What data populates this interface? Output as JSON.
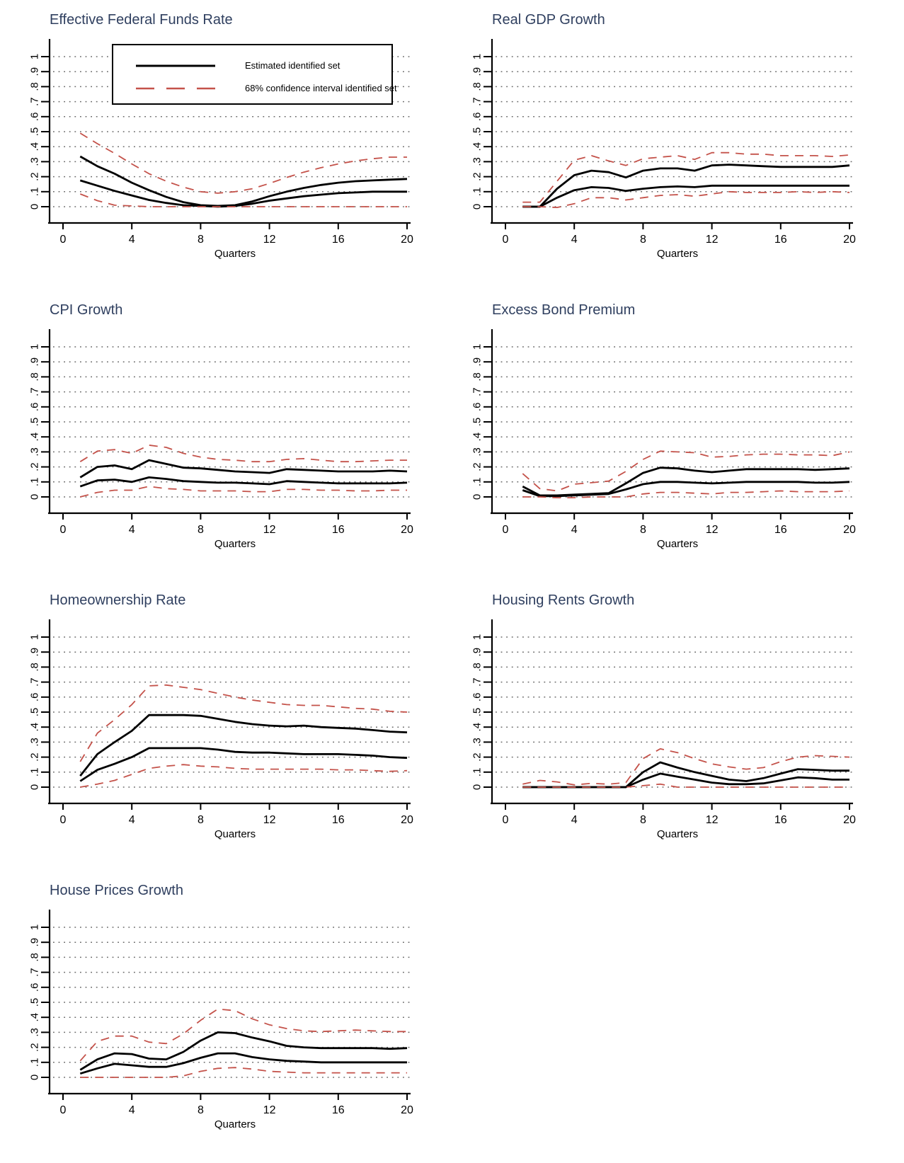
{
  "page": {
    "background": "#ffffff"
  },
  "styles": {
    "title_color": "#2f3f5f",
    "solid_line_color": "#000000",
    "ci_line_color": "#c4524a",
    "grid_color": "#686868",
    "axis_color": "#000000"
  },
  "legend": {
    "items": [
      {
        "label": "Estimated identified set",
        "style": "solid"
      },
      {
        "label": "68% confidence interval identified set",
        "style": "dashed"
      }
    ]
  },
  "axes": {
    "xlabel": "Quarters",
    "x_ticks": [
      0,
      4,
      8,
      12,
      16,
      20
    ],
    "y_tick_labels": [
      "0",
      ".1",
      ".2",
      ".3",
      ".4",
      ".5",
      ".6",
      ".7",
      ".8",
      ".9",
      "1"
    ],
    "xlim": [
      0,
      20
    ],
    "ylim": [
      0,
      1
    ],
    "grid": "dotted-horizontal",
    "quarters": [
      1,
      2,
      3,
      4,
      5,
      6,
      7,
      8,
      9,
      10,
      11,
      12,
      13,
      14,
      15,
      16,
      17,
      18,
      19,
      20
    ]
  },
  "chart_data": [
    {
      "type": "line",
      "title": "Effective Federal Funds Rate",
      "xlabel": "Quarters",
      "has_legend": true,
      "series": [
        {
          "name": "estimated_set_upper",
          "style": "solid",
          "values": [
            0.335,
            0.27,
            0.22,
            0.16,
            0.11,
            0.065,
            0.03,
            0.01,
            0.005,
            0.01,
            0.035,
            0.07,
            0.1,
            0.125,
            0.145,
            0.16,
            0.17,
            0.175,
            0.18,
            0.185
          ]
        },
        {
          "name": "estimated_set_lower",
          "style": "solid",
          "values": [
            0.175,
            0.14,
            0.105,
            0.075,
            0.045,
            0.025,
            0.01,
            0.005,
            0,
            0.005,
            0.02,
            0.04,
            0.055,
            0.07,
            0.08,
            0.09,
            0.095,
            0.1,
            0.1,
            0.1
          ]
        },
        {
          "name": "ci68_upper",
          "style": "dashed",
          "values": [
            0.49,
            0.42,
            0.355,
            0.285,
            0.22,
            0.17,
            0.13,
            0.1,
            0.09,
            0.1,
            0.12,
            0.155,
            0.195,
            0.23,
            0.26,
            0.285,
            0.305,
            0.32,
            0.33,
            0.33
          ]
        },
        {
          "name": "ci68_lower",
          "style": "dashed",
          "values": [
            0.085,
            0.04,
            0.01,
            0.005,
            0,
            0,
            0,
            0,
            0,
            0,
            0,
            0,
            0,
            0,
            0,
            0,
            0,
            0,
            0,
            0
          ]
        }
      ]
    },
    {
      "type": "line",
      "title": "Real GDP Growth",
      "xlabel": "Quarters",
      "has_legend": false,
      "series": [
        {
          "name": "estimated_set_upper",
          "style": "solid",
          "values": [
            0,
            0,
            0.12,
            0.21,
            0.24,
            0.23,
            0.195,
            0.24,
            0.255,
            0.255,
            0.24,
            0.275,
            0.28,
            0.275,
            0.27,
            0.265,
            0.265,
            0.265,
            0.265,
            0.275
          ]
        },
        {
          "name": "estimated_set_lower",
          "style": "solid",
          "values": [
            0,
            0,
            0.06,
            0.11,
            0.13,
            0.125,
            0.105,
            0.12,
            0.13,
            0.135,
            0.13,
            0.14,
            0.14,
            0.14,
            0.14,
            0.14,
            0.14,
            0.14,
            0.14,
            0.14
          ]
        },
        {
          "name": "ci68_upper",
          "style": "dashed",
          "values": [
            0.03,
            0.03,
            0.17,
            0.31,
            0.34,
            0.305,
            0.275,
            0.32,
            0.33,
            0.34,
            0.315,
            0.36,
            0.36,
            0.35,
            0.35,
            0.34,
            0.34,
            0.34,
            0.335,
            0.345
          ]
        },
        {
          "name": "ci68_lower",
          "style": "dashed",
          "values": [
            0,
            0,
            -0.005,
            0.02,
            0.06,
            0.06,
            0.045,
            0.06,
            0.075,
            0.08,
            0.07,
            0.085,
            0.1,
            0.095,
            0.095,
            0.095,
            0.1,
            0.095,
            0.1,
            0.095
          ]
        }
      ]
    },
    {
      "type": "line",
      "title": "CPI Growth",
      "xlabel": "Quarters",
      "has_legend": false,
      "series": [
        {
          "name": "estimated_set_upper",
          "style": "solid",
          "values": [
            0.13,
            0.2,
            0.21,
            0.185,
            0.245,
            0.22,
            0.195,
            0.19,
            0.18,
            0.17,
            0.165,
            0.16,
            0.185,
            0.18,
            0.175,
            0.17,
            0.17,
            0.17,
            0.175,
            0.17
          ]
        },
        {
          "name": "estimated_set_lower",
          "style": "solid",
          "values": [
            0.07,
            0.11,
            0.115,
            0.1,
            0.13,
            0.12,
            0.105,
            0.1,
            0.095,
            0.095,
            0.09,
            0.085,
            0.105,
            0.1,
            0.095,
            0.09,
            0.09,
            0.09,
            0.09,
            0.095
          ]
        },
        {
          "name": "ci68_upper",
          "style": "dashed",
          "values": [
            0.235,
            0.305,
            0.315,
            0.29,
            0.345,
            0.33,
            0.29,
            0.265,
            0.25,
            0.245,
            0.235,
            0.235,
            0.25,
            0.255,
            0.245,
            0.235,
            0.235,
            0.24,
            0.245,
            0.245
          ]
        },
        {
          "name": "ci68_lower",
          "style": "dashed",
          "values": [
            0,
            0.03,
            0.045,
            0.045,
            0.07,
            0.055,
            0.05,
            0.04,
            0.04,
            0.04,
            0.035,
            0.035,
            0.05,
            0.05,
            0.045,
            0.045,
            0.04,
            0.04,
            0.045,
            0.045
          ]
        }
      ]
    },
    {
      "type": "line",
      "title": "Excess Bond Premium",
      "xlabel": "Quarters",
      "has_legend": false,
      "series": [
        {
          "name": "estimated_set_upper",
          "style": "solid",
          "values": [
            0.07,
            0.01,
            0.01,
            0.015,
            0.02,
            0.025,
            0.09,
            0.16,
            0.195,
            0.19,
            0.175,
            0.165,
            0.175,
            0.185,
            0.185,
            0.185,
            0.185,
            0.18,
            0.185,
            0.19
          ]
        },
        {
          "name": "estimated_set_lower",
          "style": "solid",
          "values": [
            0.045,
            0.005,
            0.005,
            0.01,
            0.015,
            0.02,
            0.05,
            0.085,
            0.1,
            0.1,
            0.095,
            0.09,
            0.095,
            0.1,
            0.1,
            0.1,
            0.1,
            0.095,
            0.095,
            0.1
          ]
        },
        {
          "name": "ci68_upper",
          "style": "dashed",
          "values": [
            0.155,
            0.055,
            0.04,
            0.085,
            0.095,
            0.105,
            0.17,
            0.25,
            0.305,
            0.3,
            0.295,
            0.265,
            0.27,
            0.28,
            0.285,
            0.285,
            0.28,
            0.28,
            0.275,
            0.3
          ]
        },
        {
          "name": "ci68_lower",
          "style": "dashed",
          "values": [
            0,
            0,
            -0.005,
            -0.005,
            0,
            0,
            0,
            0.02,
            0.03,
            0.03,
            0.025,
            0.02,
            0.03,
            0.03,
            0.035,
            0.04,
            0.035,
            0.035,
            0.035,
            0.04
          ]
        }
      ]
    },
    {
      "type": "line",
      "title": "Homeownership Rate",
      "xlabel": "Quarters",
      "has_legend": false,
      "series": [
        {
          "name": "estimated_set_upper",
          "style": "solid",
          "values": [
            0.075,
            0.22,
            0.3,
            0.375,
            0.48,
            0.48,
            0.48,
            0.475,
            0.455,
            0.435,
            0.42,
            0.41,
            0.405,
            0.41,
            0.4,
            0.395,
            0.39,
            0.38,
            0.37,
            0.365
          ]
        },
        {
          "name": "estimated_set_lower",
          "style": "solid",
          "values": [
            0.04,
            0.115,
            0.155,
            0.2,
            0.26,
            0.26,
            0.26,
            0.26,
            0.25,
            0.235,
            0.23,
            0.23,
            0.225,
            0.22,
            0.22,
            0.22,
            0.215,
            0.21,
            0.2,
            0.195
          ]
        },
        {
          "name": "ci68_upper",
          "style": "dashed",
          "values": [
            0.17,
            0.36,
            0.45,
            0.55,
            0.675,
            0.68,
            0.665,
            0.65,
            0.625,
            0.6,
            0.58,
            0.565,
            0.55,
            0.545,
            0.545,
            0.535,
            0.525,
            0.52,
            0.505,
            0.5
          ]
        },
        {
          "name": "ci68_lower",
          "style": "dashed",
          "values": [
            0,
            0.02,
            0.045,
            0.085,
            0.125,
            0.14,
            0.15,
            0.14,
            0.135,
            0.125,
            0.12,
            0.12,
            0.12,
            0.12,
            0.12,
            0.115,
            0.115,
            0.11,
            0.105,
            0.11
          ]
        }
      ]
    },
    {
      "type": "line",
      "title": "Housing Rents Growth",
      "xlabel": "Quarters",
      "has_legend": false,
      "series": [
        {
          "name": "estimated_set_upper",
          "style": "solid",
          "values": [
            0,
            0,
            0,
            0,
            0,
            0,
            0,
            0.1,
            0.165,
            0.13,
            0.1,
            0.075,
            0.05,
            0.04,
            0.06,
            0.09,
            0.12,
            0.115,
            0.11,
            0.11
          ]
        },
        {
          "name": "estimated_set_lower",
          "style": "solid",
          "values": [
            0,
            0,
            0,
            0,
            0,
            0,
            0,
            0.05,
            0.09,
            0.07,
            0.05,
            0.03,
            0.02,
            0.02,
            0.025,
            0.045,
            0.065,
            0.06,
            0.05,
            0.05
          ]
        },
        {
          "name": "ci68_upper",
          "style": "dashed",
          "values": [
            0.02,
            0.045,
            0.035,
            0.015,
            0.025,
            0.02,
            0.03,
            0.19,
            0.255,
            0.23,
            0.19,
            0.155,
            0.135,
            0.12,
            0.13,
            0.17,
            0.2,
            0.21,
            0.205,
            0.2
          ]
        },
        {
          "name": "ci68_lower",
          "style": "dashed",
          "values": [
            0,
            0,
            0,
            0,
            0,
            0,
            0,
            0.01,
            0.02,
            0,
            0,
            0,
            0,
            0,
            0,
            0,
            0,
            0,
            0,
            0
          ]
        }
      ]
    },
    {
      "type": "line",
      "title": "House Prices Growth",
      "xlabel": "Quarters",
      "has_legend": false,
      "series": [
        {
          "name": "estimated_set_upper",
          "style": "solid",
          "values": [
            0.05,
            0.12,
            0.16,
            0.155,
            0.125,
            0.12,
            0.17,
            0.245,
            0.3,
            0.295,
            0.265,
            0.24,
            0.21,
            0.2,
            0.195,
            0.195,
            0.195,
            0.195,
            0.19,
            0.195
          ]
        },
        {
          "name": "estimated_set_lower",
          "style": "solid",
          "values": [
            0.025,
            0.06,
            0.09,
            0.08,
            0.07,
            0.07,
            0.095,
            0.13,
            0.16,
            0.16,
            0.135,
            0.12,
            0.11,
            0.105,
            0.1,
            0.1,
            0.1,
            0.1,
            0.1,
            0.1
          ]
        },
        {
          "name": "ci68_upper",
          "style": "dashed",
          "values": [
            0.11,
            0.24,
            0.275,
            0.275,
            0.235,
            0.225,
            0.29,
            0.38,
            0.455,
            0.445,
            0.39,
            0.35,
            0.325,
            0.31,
            0.305,
            0.31,
            0.315,
            0.31,
            0.305,
            0.305
          ]
        },
        {
          "name": "ci68_lower",
          "style": "dashed",
          "values": [
            0,
            0,
            0,
            0,
            0,
            0,
            0.01,
            0.04,
            0.06,
            0.065,
            0.055,
            0.04,
            0.035,
            0.03,
            0.03,
            0.03,
            0.03,
            0.03,
            0.03,
            0.03
          ]
        }
      ]
    }
  ]
}
